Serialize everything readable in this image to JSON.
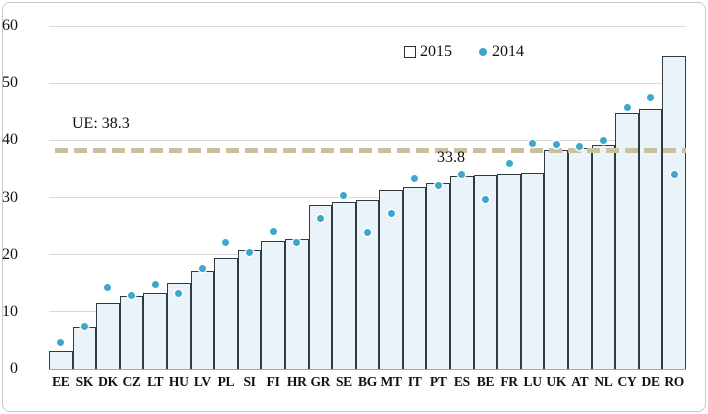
{
  "chart": {
    "legend": {
      "series_2015_label": "2015",
      "series_2014_label": "2014"
    }
  },
  "chart_data": {
    "type": "bar",
    "title": "",
    "xlabel": "",
    "ylabel": "",
    "categories": [
      "EE",
      "SK",
      "DK",
      "CZ",
      "LT",
      "HU",
      "LV",
      "PL",
      "SI",
      "FI",
      "HR",
      "GR",
      "SE",
      "BG",
      "MT",
      "IT",
      "PT",
      "ES",
      "BE",
      "FR",
      "LU",
      "UK",
      "AT",
      "NL",
      "CY",
      "DE",
      "RO"
    ],
    "series": [
      {
        "name": "2015",
        "type": "bar",
        "values": [
          3.2,
          7.3,
          11.5,
          12.8,
          13.3,
          15.1,
          17.2,
          19.5,
          20.8,
          22.4,
          22.7,
          28.7,
          29.3,
          29.5,
          31.3,
          31.9,
          32.6,
          33.8,
          34.0,
          34.1,
          34.3,
          38.3,
          38.7,
          39.1,
          44.8,
          45.4,
          54.8
        ]
      },
      {
        "name": "2014",
        "type": "scatter",
        "values": [
          4.6,
          7.5,
          14.2,
          12.9,
          14.7,
          13.2,
          17.5,
          22.1,
          20.3,
          24.1,
          22.2,
          26.3,
          30.4,
          23.9,
          27.2,
          33.4,
          32.1,
          34.1,
          29.7,
          35.9,
          39.4,
          39.3,
          38.9,
          40.0,
          45.7,
          47.5,
          34.0
        ]
      }
    ],
    "reference_line": {
      "label": "UE: 38.3",
      "value": 38.3
    },
    "annotation": {
      "text": "33.8",
      "category": "ES",
      "value": 33.8
    },
    "ylim": [
      0,
      60
    ],
    "yticks": [
      0,
      10,
      20,
      30,
      40,
      50,
      60
    ],
    "grid": true,
    "legend_position": "top-center",
    "colors": {
      "bar_fill": "#eaf3fa",
      "bar_border": "#2e3b42",
      "dot": "#3fa6cc",
      "reference_line": "#c9c09e",
      "gridline": "#d9d9d9",
      "axis_line": "#a6a6a6"
    }
  }
}
